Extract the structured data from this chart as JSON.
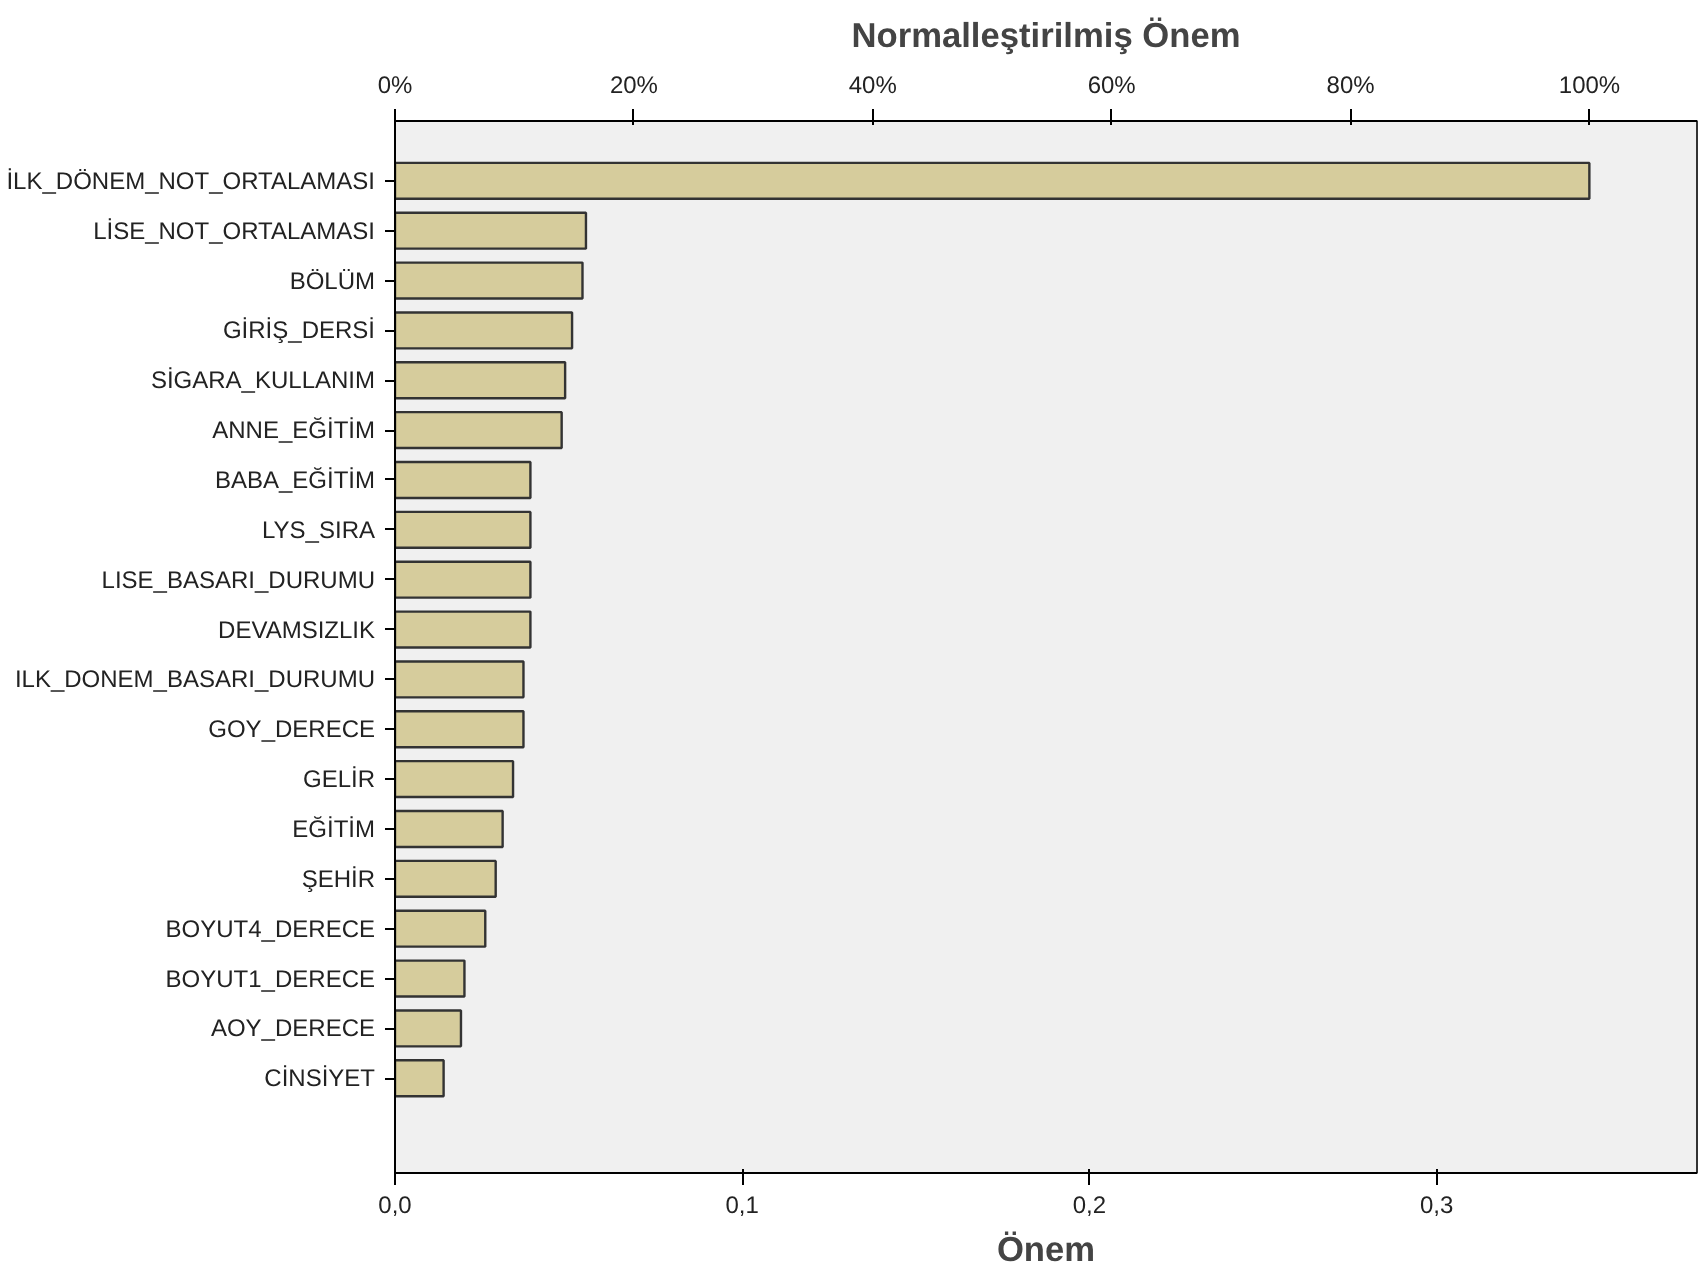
{
  "chart_data": {
    "type": "bar",
    "orientation": "horizontal",
    "title": "Normalleştirilmiş Önem",
    "xlabel": "Önem",
    "categories": [
      "İLK_DÖNEM_NOT_ORTALAMASI",
      "LİSE_NOT_ORTALAMASI",
      "BÖLÜM",
      "GİRİŞ_DERSİ",
      "SİGARA_KULLANIM",
      "ANNE_EĞİTİM",
      "BABA_EĞİTİM",
      "LYS_SIRA",
      "LISE_BASARI_DURUMU",
      "DEVAMSIZLIK",
      "ILK_DONEM_BASARI_DURUMU",
      "GOY_DERECE",
      "GELİR",
      "EĞİTİM",
      "ŞEHİR",
      "BOYUT4_DERECE",
      "BOYUT1_DERECE",
      "AOY_DERECE",
      "CİNSİYET"
    ],
    "values": [
      0.344,
      0.055,
      0.054,
      0.051,
      0.049,
      0.048,
      0.039,
      0.039,
      0.039,
      0.039,
      0.037,
      0.037,
      0.034,
      0.031,
      0.029,
      0.026,
      0.02,
      0.019,
      0.014
    ],
    "color": "#d6cc9c",
    "xlim": [
      0,
      0.375
    ],
    "xticks": [
      {
        "value": 0,
        "label": "0,0"
      },
      {
        "value": 0.1,
        "label": "0,1"
      },
      {
        "value": 0.2,
        "label": "0,2"
      },
      {
        "value": 0.3,
        "label": "0,3"
      }
    ],
    "x2lim": [
      0,
      109
    ],
    "x2ticks": [
      {
        "value": 0,
        "label": "0%"
      },
      {
        "value": 20,
        "label": "20%"
      },
      {
        "value": 40,
        "label": "40%"
      },
      {
        "value": 60,
        "label": "60%"
      },
      {
        "value": 80,
        "label": "80%"
      },
      {
        "value": 100,
        "label": "100%"
      }
    ],
    "grid": false
  }
}
